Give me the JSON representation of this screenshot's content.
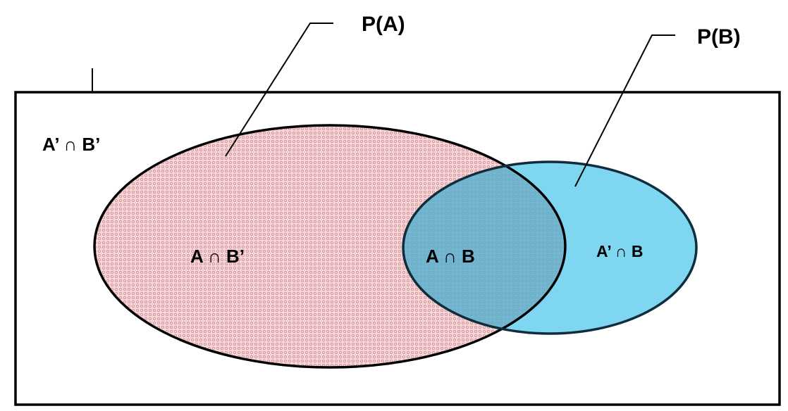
{
  "labels": {
    "p_a": "P(A)",
    "p_b": "P(B)",
    "complement_both": "A’ ∩ B’",
    "a_only": "A ∩ B’",
    "intersection": "A ∩ B",
    "b_only": "A’ ∩ B"
  },
  "colors": {
    "set_a_fill": "#f4d7d9",
    "set_a_dots": "#d98a92",
    "set_b_fill": "#7fd6f0",
    "intersection_fill": "#57b0cf",
    "stroke": "#000000",
    "background": "#ffffff"
  }
}
